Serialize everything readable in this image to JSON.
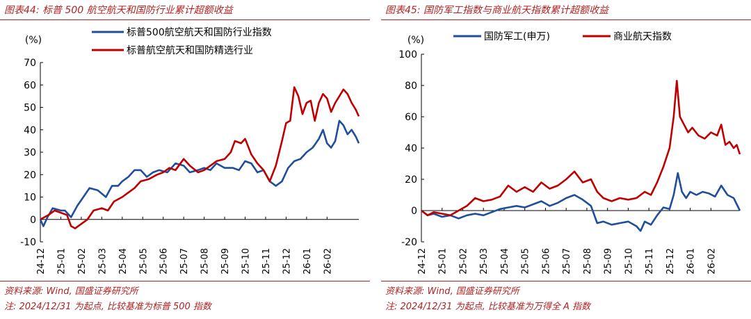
{
  "panels": [
    {
      "title": "图表44:  标普 500 航空航天和国防行业累计超额收益",
      "source": "资料来源: Wind, 国盛证券研究所",
      "note": "注: 2024/12/31 为起点, 比较基准为标普 500 指数"
    },
    {
      "title": "图表45:  国防军工指数与商业航天指数累计超额收益",
      "source": "资料来源: Wind, 国盛证券研究所",
      "note": "注: 2024/12/31 为起点, 比较基准为万得全 A 指数"
    }
  ],
  "chart_data": [
    {
      "type": "line",
      "title": "标普 500 航空航天和国防行业累计超额收益",
      "ylabel": "(%)",
      "ylim": [
        -10,
        70
      ],
      "yticks": [
        -10,
        0,
        10,
        20,
        30,
        40,
        50,
        60,
        70
      ],
      "categories": [
        "24-12",
        "25-01",
        "25-02",
        "25-03",
        "25-04",
        "25-05",
        "25-06",
        "25-07",
        "25-08",
        "25-09",
        "25-10",
        "25-11",
        "25-12",
        "26-01",
        "26-02"
      ],
      "x_end": 15.55,
      "legend_position": "top-center",
      "series": [
        {
          "name": "标普500航空航天和国防行业指数",
          "color": "#1f4e9c",
          "x": [
            0,
            0.15,
            0.35,
            0.6,
            1.0,
            1.2,
            1.5,
            1.8,
            2.1,
            2.4,
            2.8,
            3.2,
            3.5,
            3.8,
            4.0,
            4.3,
            4.6,
            4.9,
            5.2,
            5.5,
            5.8,
            6.2,
            6.6,
            7.0,
            7.3,
            7.7,
            8.0,
            8.3,
            8.6,
            9.0,
            9.4,
            9.7,
            10.0,
            10.3,
            10.6,
            10.9,
            11.2,
            11.5,
            11.8,
            12.1,
            12.4,
            12.7,
            13.0,
            13.3,
            13.6,
            13.8,
            14.0,
            14.2,
            14.4,
            14.6,
            14.8,
            15.0,
            15.2,
            15.4,
            15.55
          ],
          "values": [
            0,
            -3,
            1,
            5,
            4,
            4,
            1,
            6,
            10,
            14,
            13,
            10,
            15,
            15,
            17,
            19,
            22,
            22,
            19,
            21,
            22,
            21,
            25,
            24,
            21,
            22,
            23,
            22,
            25,
            23,
            23,
            22,
            26,
            25,
            21,
            22,
            17,
            15,
            17,
            23,
            26,
            27,
            30,
            32,
            36,
            40,
            34,
            32,
            35,
            44,
            42,
            38,
            40,
            37,
            34
          ]
        },
        {
          "name": "标普航空航天和国防精选行业",
          "color": "#c00000",
          "x": [
            0,
            0.2,
            0.4,
            0.7,
            1.0,
            1.3,
            1.5,
            1.7,
            2.0,
            2.3,
            2.6,
            3.0,
            3.3,
            3.6,
            4.0,
            4.3,
            4.6,
            4.9,
            5.3,
            5.7,
            6.0,
            6.3,
            6.6,
            7.0,
            7.3,
            7.7,
            8.0,
            8.3,
            8.6,
            9.0,
            9.3,
            9.5,
            9.8,
            10.0,
            10.3,
            10.6,
            10.9,
            11.2,
            11.5,
            11.8,
            12.0,
            12.2,
            12.4,
            12.6,
            12.8,
            13.0,
            13.2,
            13.4,
            13.6,
            13.8,
            14.0,
            14.2,
            14.4,
            14.6,
            14.8,
            15.0,
            15.2,
            15.4,
            15.55
          ],
          "values": [
            0,
            1,
            2,
            4,
            3,
            2,
            -3,
            -4,
            -2,
            0,
            4,
            5,
            4,
            8,
            10,
            12,
            14,
            17,
            18,
            20,
            21,
            23,
            22,
            27,
            24,
            21,
            22,
            24,
            26,
            27,
            30,
            35,
            34,
            36,
            29,
            25,
            22,
            17,
            24,
            35,
            43,
            44,
            59,
            55,
            47,
            52,
            53,
            44,
            52,
            56,
            54,
            48,
            52,
            55,
            58,
            56,
            52,
            49,
            46
          ]
        }
      ]
    },
    {
      "type": "line",
      "title": "国防军工指数与商业航天指数累计超额收益",
      "ylabel": "(%)",
      "ylim": [
        -20,
        100
      ],
      "yticks": [
        -20,
        0,
        20,
        40,
        60,
        80,
        100
      ],
      "categories": [
        "24-12",
        "25-01",
        "25-02",
        "25-03",
        "25-04",
        "25-05",
        "25-06",
        "25-07",
        "25-08",
        "25-09",
        "25-10",
        "25-11",
        "25-12",
        "26-01",
        "26-02"
      ],
      "x_end": 15.4,
      "legend_position": "top",
      "series": [
        {
          "name": "国防军工(申万)",
          "color": "#1f4e9c",
          "x": [
            0,
            0.3,
            0.6,
            1.0,
            1.4,
            1.8,
            2.2,
            2.6,
            3.0,
            3.4,
            3.8,
            4.2,
            4.6,
            5.0,
            5.4,
            5.8,
            6.2,
            6.6,
            7.0,
            7.4,
            7.8,
            8.2,
            8.5,
            8.8,
            9.2,
            9.6,
            10.0,
            10.4,
            10.6,
            10.8,
            11.1,
            11.4,
            11.7,
            12.0,
            12.2,
            12.4,
            12.6,
            12.8,
            13.0,
            13.3,
            13.6,
            13.9,
            14.2,
            14.5,
            14.8,
            15.1,
            15.4
          ],
          "values": [
            0,
            -3,
            -2,
            -4,
            -3,
            -5,
            -3,
            -2,
            -3,
            -1,
            1,
            2,
            3,
            2,
            4,
            6,
            3,
            5,
            8,
            10,
            7,
            3,
            -8,
            -7,
            -9,
            -8,
            -7,
            -10,
            -13,
            -7,
            -9,
            -3,
            2,
            1,
            10,
            24,
            12,
            8,
            12,
            10,
            12,
            11,
            9,
            16,
            10,
            8,
            0
          ]
        },
        {
          "name": "商业航天指数",
          "color": "#c00000",
          "x": [
            0,
            0.3,
            0.6,
            1.0,
            1.4,
            1.8,
            2.2,
            2.6,
            3.0,
            3.4,
            3.8,
            4.2,
            4.6,
            5.0,
            5.4,
            5.8,
            6.2,
            6.6,
            7.0,
            7.4,
            7.8,
            8.2,
            8.5,
            8.8,
            9.2,
            9.6,
            10.0,
            10.4,
            10.8,
            11.1,
            11.4,
            11.7,
            12.0,
            12.2,
            12.35,
            12.5,
            12.7,
            12.9,
            13.1,
            13.4,
            13.7,
            14.0,
            14.3,
            14.5,
            14.7,
            14.9,
            15.1,
            15.25,
            15.4
          ],
          "values": [
            0,
            -3,
            -1,
            -2,
            -3,
            0,
            3,
            8,
            6,
            7,
            9,
            16,
            12,
            15,
            12,
            18,
            14,
            16,
            20,
            25,
            18,
            20,
            12,
            8,
            6,
            8,
            7,
            8,
            12,
            10,
            18,
            28,
            40,
            60,
            83,
            60,
            55,
            50,
            53,
            48,
            46,
            50,
            48,
            55,
            42,
            44,
            40,
            42,
            36
          ]
        }
      ]
    }
  ]
}
